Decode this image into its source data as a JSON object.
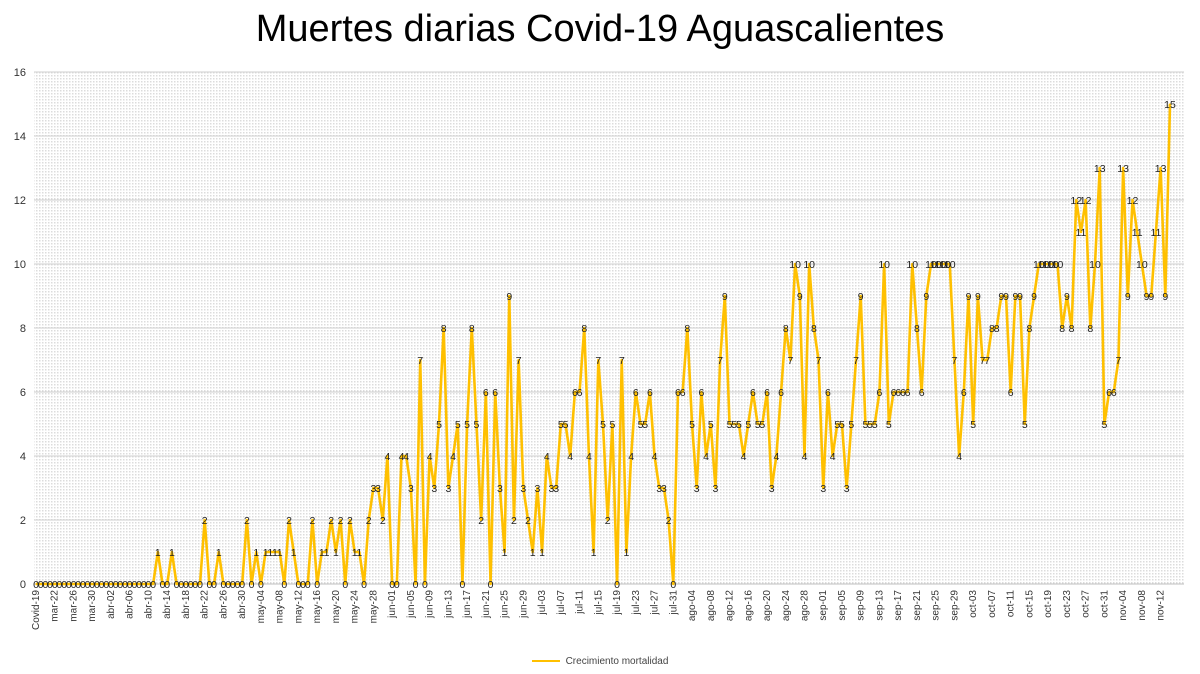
{
  "chart_data": {
    "type": "line",
    "title": "Muertes diarias Covid-19 Aguascalientes",
    "xlabel": "",
    "ylabel": "",
    "ylim": [
      0,
      16
    ],
    "yticks": [
      0,
      2,
      4,
      6,
      8,
      10,
      12,
      14,
      16
    ],
    "grid": true,
    "legend_position": "bottom",
    "line_color": "#FFC000",
    "x_tick_labels": [
      "Covid-19",
      "mar-22",
      "mar-26",
      "mar-30",
      "abr-02",
      "abr-06",
      "abr-10",
      "abr-14",
      "abr-18",
      "abr-22",
      "abr-26",
      "abr-30",
      "may-04",
      "may-08",
      "may-12",
      "may-16",
      "may-20",
      "may-24",
      "may-28",
      "jun-01",
      "jun-05",
      "jun-09",
      "jun-13",
      "jun-17",
      "jun-21",
      "jun-25",
      "jun-29",
      "jul-03",
      "jul-07",
      "jul-11",
      "jul-15",
      "jul-19",
      "jul-23",
      "jul-27",
      "jul-31",
      "ago-04",
      "ago-08",
      "ago-12",
      "ago-16",
      "ago-20",
      "ago-24",
      "ago-28",
      "sep-01",
      "sep-05",
      "sep-09",
      "sep-13",
      "sep-17",
      "sep-21",
      "sep-25",
      "sep-29",
      "oct-03",
      "oct-07",
      "oct-11",
      "oct-15",
      "oct-19",
      "oct-23",
      "oct-27",
      "oct-31",
      "nov-04",
      "nov-08",
      "nov-12"
    ],
    "series": [
      {
        "name": "Crecimiento mortalidad",
        "values": [
          0,
          0,
          0,
          0,
          0,
          0,
          0,
          0,
          0,
          0,
          0,
          0,
          0,
          0,
          0,
          0,
          0,
          0,
          0,
          0,
          0,
          0,
          0,
          0,
          0,
          0,
          1,
          0,
          0,
          1,
          0,
          0,
          0,
          0,
          0,
          0,
          2,
          0,
          0,
          1,
          0,
          0,
          0,
          0,
          0,
          2,
          0,
          1,
          0,
          1,
          1,
          1,
          1,
          0,
          2,
          1,
          0,
          0,
          0,
          2,
          0,
          1,
          1,
          2,
          1,
          2,
          0,
          2,
          1,
          1,
          0,
          2,
          3,
          3,
          2,
          4,
          0,
          0,
          4,
          4,
          3,
          0,
          7,
          0,
          4,
          3,
          5,
          8,
          3,
          4,
          5,
          0,
          5,
          8,
          5,
          2,
          6,
          0,
          6,
          3,
          1,
          9,
          2,
          7,
          3,
          2,
          1,
          3,
          1,
          4,
          3,
          3,
          5,
          5,
          4,
          6,
          6,
          8,
          4,
          1,
          7,
          5,
          2,
          5,
          0,
          7,
          1,
          4,
          6,
          5,
          5,
          6,
          4,
          3,
          3,
          2,
          0,
          6,
          6,
          8,
          5,
          3,
          6,
          4,
          5,
          3,
          7,
          9,
          5,
          5,
          5,
          4,
          5,
          6,
          5,
          5,
          6,
          3,
          4,
          6,
          8,
          7,
          10,
          9,
          4,
          10,
          8,
          7,
          3,
          6,
          4,
          5,
          5,
          3,
          5,
          7,
          9,
          5,
          5,
          5,
          6,
          10,
          5,
          6,
          6,
          6,
          6,
          10,
          8,
          6,
          9,
          10,
          10,
          10,
          10,
          10,
          7,
          4,
          6,
          9,
          5,
          9,
          7,
          7,
          8,
          8,
          9,
          9,
          6,
          9,
          9,
          5,
          8,
          9,
          10,
          10,
          10,
          10,
          10,
          8,
          9,
          8,
          12,
          11,
          12,
          8,
          10,
          13,
          5,
          6,
          6,
          7,
          13,
          9,
          12,
          11,
          10,
          9,
          9,
          11,
          13,
          9,
          15
        ]
      }
    ]
  }
}
